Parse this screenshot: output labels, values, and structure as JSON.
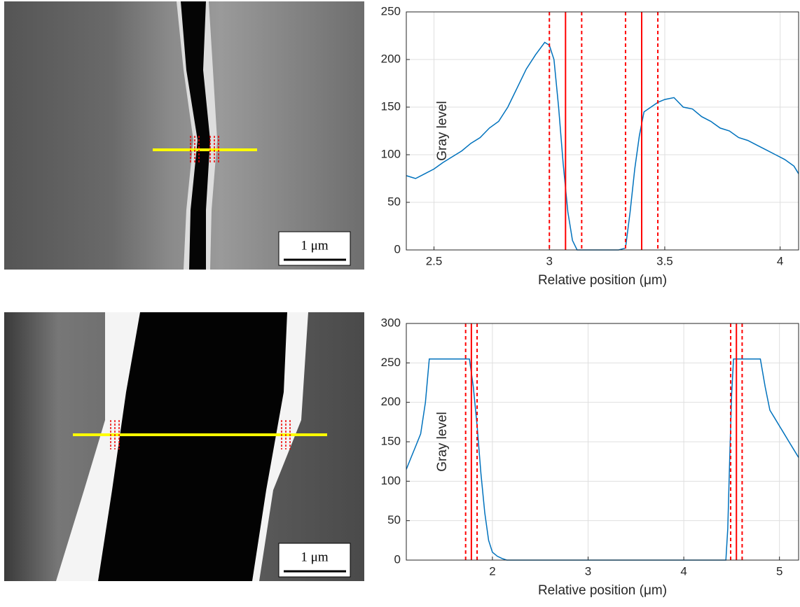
{
  "images": [
    {
      "scale_label": "1 μm"
    },
    {
      "scale_label": "1 μm"
    }
  ],
  "chart_data": [
    {
      "type": "line",
      "color": "#0072bd",
      "xlabel": "Relative position (μm)",
      "ylabel": "Gray level",
      "x": [
        2.38,
        2.42,
        2.46,
        2.5,
        2.54,
        2.58,
        2.62,
        2.66,
        2.7,
        2.74,
        2.78,
        2.82,
        2.86,
        2.9,
        2.94,
        2.98,
        3.0,
        3.02,
        3.04,
        3.06,
        3.08,
        3.1,
        3.12,
        3.16,
        3.2,
        3.25,
        3.3,
        3.33,
        3.35,
        3.37,
        3.39,
        3.41,
        3.44,
        3.47,
        3.5,
        3.54,
        3.58,
        3.62,
        3.66,
        3.7,
        3.74,
        3.78,
        3.82,
        3.86,
        3.9,
        3.94,
        3.98,
        4.02,
        4.06,
        4.08
      ],
      "values": [
        78,
        75,
        80,
        85,
        92,
        98,
        104,
        112,
        118,
        128,
        135,
        150,
        170,
        190,
        205,
        218,
        215,
        200,
        150,
        90,
        40,
        10,
        0,
        0,
        0,
        0,
        0,
        2,
        40,
        85,
        120,
        145,
        150,
        155,
        158,
        160,
        150,
        148,
        140,
        135,
        128,
        125,
        118,
        115,
        110,
        105,
        100,
        95,
        88,
        80
      ],
      "xlim": [
        2.38,
        4.08
      ],
      "xticks": [
        2.5,
        3,
        3.5,
        4
      ],
      "ylim": [
        0,
        250
      ],
      "yticks": [
        0,
        50,
        100,
        150,
        200,
        250
      ],
      "grid": true,
      "vline_color": "#ff0000",
      "vlines": [
        {
          "value": 3.0,
          "style": "dashed"
        },
        {
          "value": 3.07,
          "style": "solid"
        },
        {
          "value": 3.14,
          "style": "dashed"
        },
        {
          "value": 3.33,
          "style": "dashed"
        },
        {
          "value": 3.4,
          "style": "solid"
        },
        {
          "value": 3.47,
          "style": "dashed"
        }
      ]
    },
    {
      "type": "line",
      "color": "#0072bd",
      "xlabel": "Relative position (μm)",
      "ylabel": "Gray level",
      "x": [
        1.1,
        1.15,
        1.2,
        1.25,
        1.3,
        1.34,
        1.4,
        1.5,
        1.6,
        1.7,
        1.76,
        1.8,
        1.84,
        1.88,
        1.92,
        1.96,
        2.0,
        2.05,
        2.1,
        2.15,
        2.5,
        3.0,
        3.5,
        4.0,
        4.44,
        4.46,
        4.48,
        4.5,
        4.52,
        4.6,
        4.7,
        4.8,
        4.85,
        4.9,
        4.95,
        5.0,
        5.05,
        5.1,
        5.15,
        5.2
      ],
      "values": [
        115,
        130,
        145,
        160,
        200,
        255,
        255,
        255,
        255,
        255,
        255,
        220,
        170,
        110,
        60,
        25,
        10,
        5,
        2,
        0,
        0,
        0,
        0,
        0,
        0,
        40,
        130,
        210,
        255,
        255,
        255,
        255,
        220,
        190,
        180,
        170,
        160,
        150,
        140,
        130
      ],
      "xlim": [
        1.1,
        5.2
      ],
      "xticks": [
        2,
        3,
        4,
        5
      ],
      "ylim": [
        0,
        300
      ],
      "yticks": [
        0,
        50,
        100,
        150,
        200,
        250,
        300
      ],
      "grid": true,
      "vline_color": "#ff0000",
      "vlines": [
        {
          "value": 1.72,
          "style": "dashed"
        },
        {
          "value": 1.78,
          "style": "solid"
        },
        {
          "value": 1.84,
          "style": "dashed"
        },
        {
          "value": 4.49,
          "style": "dashed"
        },
        {
          "value": 4.55,
          "style": "solid"
        },
        {
          "value": 4.61,
          "style": "dashed"
        }
      ]
    }
  ]
}
